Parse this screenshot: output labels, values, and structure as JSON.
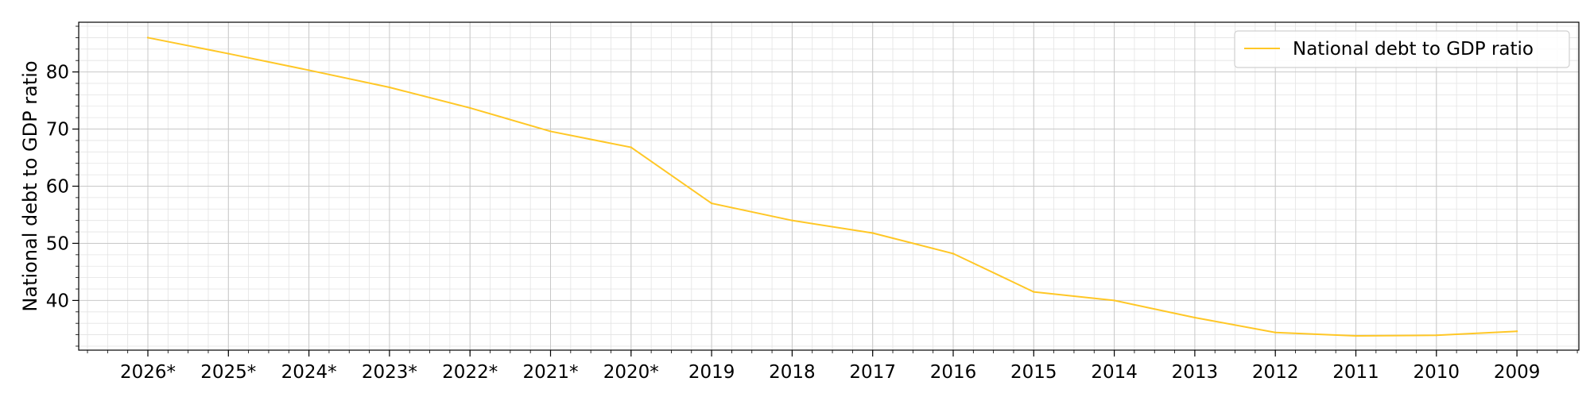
{
  "chart_data": {
    "type": "line",
    "x": [
      "2026*",
      "2025*",
      "2024*",
      "2023*",
      "2022*",
      "2021*",
      "2020*",
      "2019",
      "2018",
      "2017",
      "2016",
      "2015",
      "2014",
      "2013",
      "2012",
      "2011",
      "2010",
      "2009"
    ],
    "series": [
      {
        "name": "National debt to GDP ratio",
        "color": "#ffc726",
        "values": [
          86.0,
          83.2,
          80.3,
          77.3,
          73.7,
          69.6,
          66.8,
          57.0,
          54.0,
          51.8,
          48.2,
          41.5,
          40.0,
          37.0,
          34.4,
          33.8,
          33.9,
          34.6
        ]
      }
    ],
    "title": "",
    "xlabel": "",
    "ylabel": "National debt to GDP ratio",
    "ylim": [
      31.3,
      88.7
    ],
    "yticks": [
      40,
      50,
      60,
      70,
      80
    ],
    "grid": true,
    "legend_position": "top-right"
  }
}
